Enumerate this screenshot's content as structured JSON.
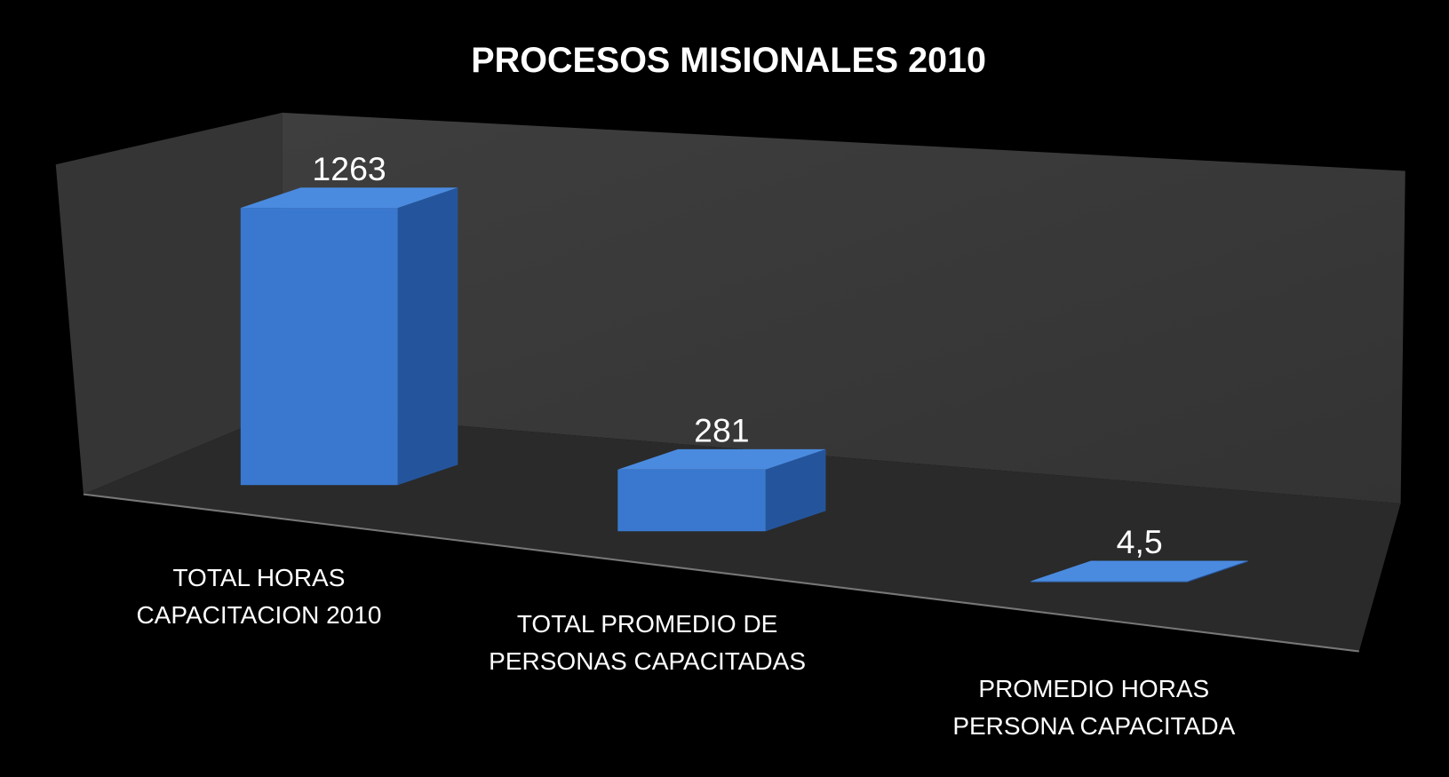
{
  "chart_data": {
    "type": "bar3d",
    "title": "PROCESOS MISIONALES 2010",
    "categories": [
      "TOTAL HORAS CAPACITACION 2010",
      "TOTAL PROMEDIO DE PERSONAS CAPACITADAS",
      "PROMEDIO HORAS PERSONA CAPACITADA"
    ],
    "values": [
      1263,
      281,
      4.5
    ],
    "value_labels": [
      "1263",
      "281",
      "4,5"
    ],
    "color": "#3a78d0"
  }
}
